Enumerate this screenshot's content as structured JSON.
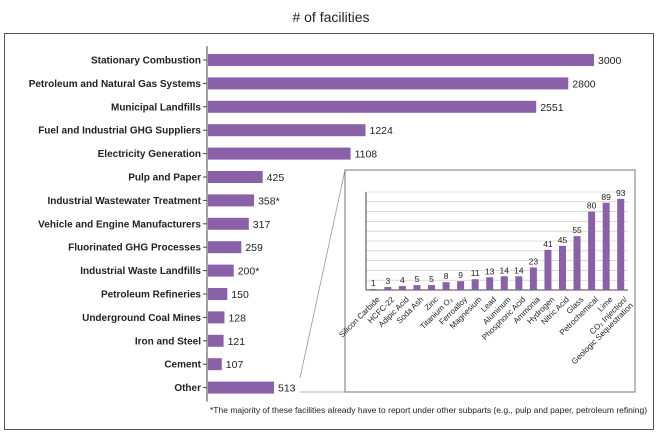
{
  "title": "# of facilities",
  "footnote": "*The majority of these facilities already have to report under other subparts (e.g., pulp and paper, petroleum refining)",
  "colors": {
    "bar": "#8a60a8",
    "axis": "#444444",
    "frame": "#555555"
  },
  "chart_data": [
    {
      "type": "bar",
      "orientation": "horizontal",
      "categories": [
        "Stationary Combustion",
        "Petroleum and Natural Gas Systems",
        "Municipal Landfills",
        "Fuel and Industrial GHG Suppliers",
        "Electricity Generation",
        "Pulp and Paper",
        "Industrial Wastewater Treatment",
        "Vehicle  and Engine Manufacturers",
        "Fluorinated GHG Processes",
        "Industrial Waste Landfills",
        "Petroleum Refineries",
        "Underground Coal Mines",
        "Iron and Steel",
        "Cement",
        "Other"
      ],
      "values": [
        3000,
        2800,
        2551,
        1224,
        1108,
        425,
        358,
        317,
        259,
        200,
        150,
        128,
        121,
        107,
        513
      ],
      "labels": [
        "3000",
        "2800",
        "2551",
        "1224",
        "1108",
        "425",
        "358*",
        "317",
        "259",
        "200*",
        "150",
        "128",
        "121",
        "107",
        "513"
      ],
      "xlim": [
        0,
        3000
      ]
    },
    {
      "type": "bar",
      "orientation": "vertical",
      "categories": [
        "Silicon Carbide",
        "HCFC-22",
        "Adipic Acid",
        "Soda Ash",
        "Zinc",
        "Titanium O₂",
        "Ferroalloy",
        "Magnesium",
        "Lead",
        "Aluminum",
        "Phosphoric Acid",
        "Ammonia",
        "Hydrogen",
        "Nitric Acid",
        "Glass",
        "Petrochemical",
        "Lime",
        "CO₂ Injection/\nGeologic Sequestration"
      ],
      "values": [
        1,
        3,
        4,
        5,
        5,
        8,
        9,
        11,
        13,
        14,
        14,
        23,
        41,
        45,
        55,
        80,
        89,
        93
      ],
      "ylim": [
        0,
        100
      ]
    }
  ]
}
